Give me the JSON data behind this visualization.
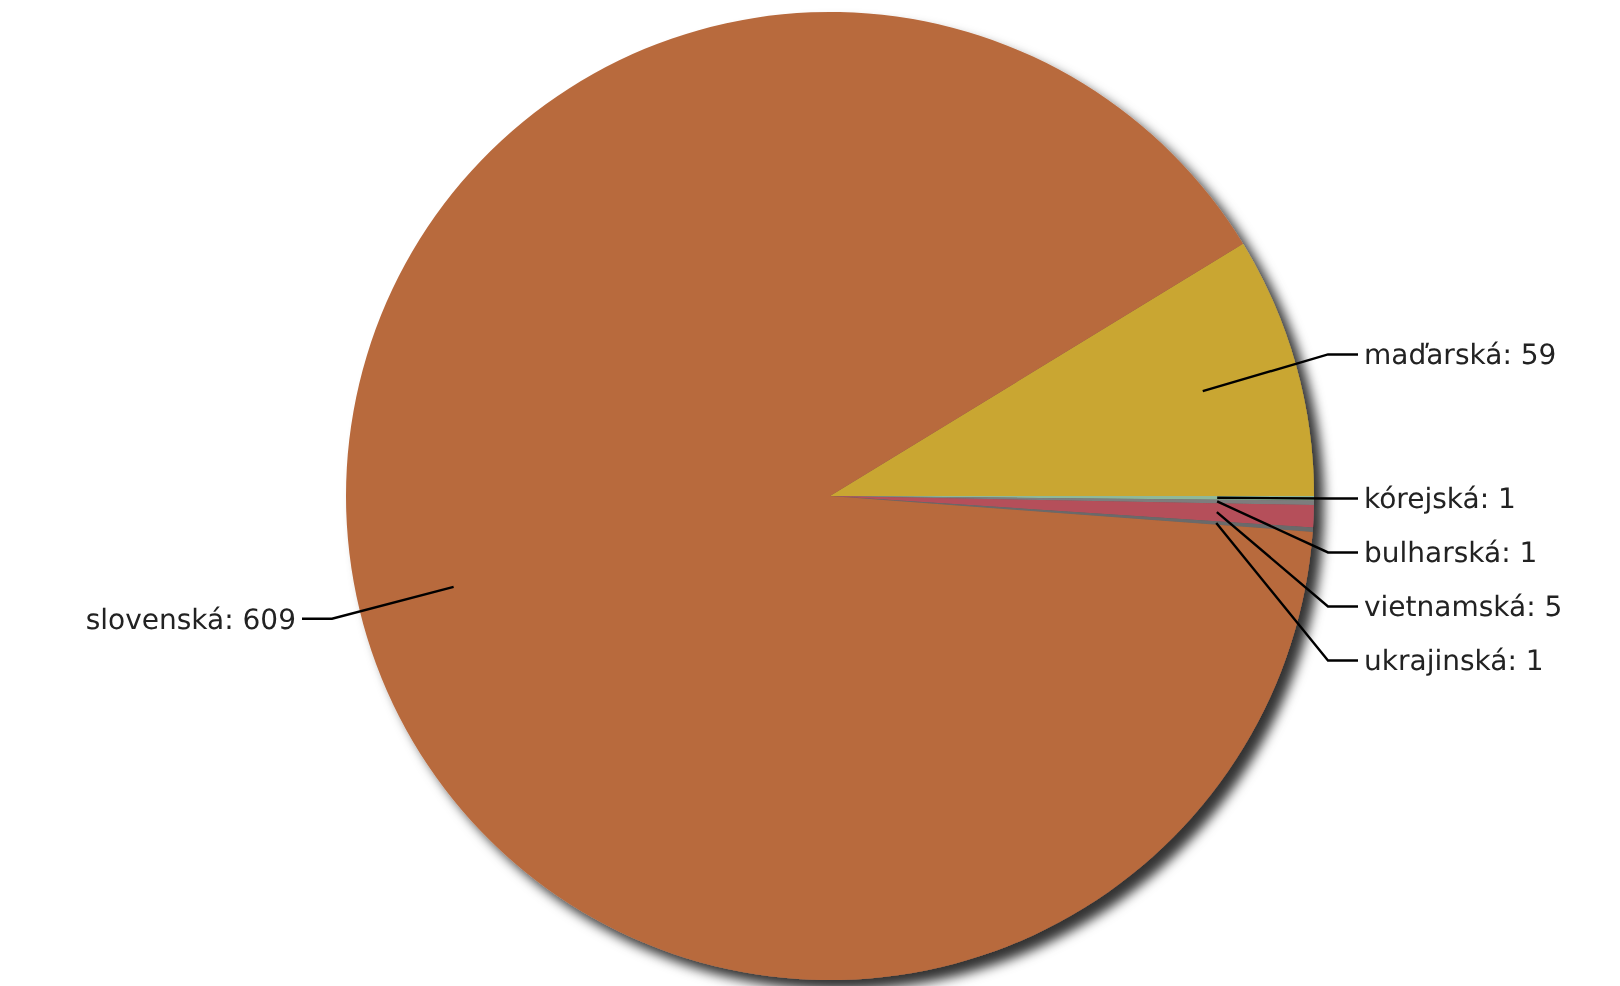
{
  "chart_data": {
    "type": "pie",
    "categories": [
      "maďarská",
      "kórejská",
      "bulharská",
      "vietnamská",
      "ukrajinská",
      "slovenská"
    ],
    "values": [
      59,
      1,
      1,
      5,
      1,
      609
    ],
    "colors": [
      "#c9a632",
      "#8fb89a",
      "#7d7d7d",
      "#b5505a",
      "#6a6a6a",
      "#b86a3e"
    ],
    "value_labels": [
      ": 59",
      ": 1",
      ": 1",
      ": 5",
      ": 1",
      ": 609"
    ]
  }
}
